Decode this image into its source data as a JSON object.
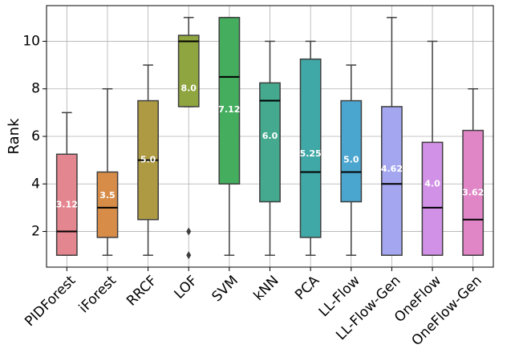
{
  "chart_data": {
    "type": "box",
    "ylabel": "Rank",
    "categories": [
      "PIDForest",
      "iForest",
      "RRCF",
      "LOF",
      "SVM",
      "kNN",
      "PCA",
      "LL-Flow",
      "LL-Flow-Gen",
      "OneFlow",
      "OneFlow-Gen"
    ],
    "colors": [
      "#e4868f",
      "#d78c48",
      "#ad9a42",
      "#8fa540",
      "#44ad5e",
      "#44a98e",
      "#40a8a6",
      "#4ba6cf",
      "#a4a7f0",
      "#d191e6",
      "#e086c6"
    ],
    "boxes": [
      {
        "min": 1,
        "q1": 1,
        "median": 2,
        "q3": 5.25,
        "max": 7,
        "outliers": []
      },
      {
        "min": 1,
        "q1": 1.75,
        "median": 3,
        "q3": 4.5,
        "max": 8,
        "outliers": []
      },
      {
        "min": 1,
        "q1": 2.5,
        "median": 5,
        "q3": 7.5,
        "max": 9,
        "outliers": []
      },
      {
        "min": 7.25,
        "q1": 7.25,
        "median": 10,
        "q3": 10.25,
        "max": 11,
        "outliers": [
          2,
          1
        ]
      },
      {
        "min": 1,
        "q1": 4,
        "median": 8.5,
        "q3": 11,
        "max": 11,
        "outliers": []
      },
      {
        "min": 1,
        "q1": 3.25,
        "median": 7.5,
        "q3": 8.25,
        "max": 10,
        "outliers": []
      },
      {
        "min": 1,
        "q1": 1.75,
        "median": 4.5,
        "q3": 9.25,
        "max": 10,
        "outliers": []
      },
      {
        "min": 1,
        "q1": 3.25,
        "median": 4.5,
        "q3": 7.5,
        "max": 9,
        "outliers": []
      },
      {
        "min": 1,
        "q1": 1,
        "median": 4,
        "q3": 7.25,
        "max": 11,
        "outliers": []
      },
      {
        "min": 1,
        "q1": 1,
        "median": 3,
        "q3": 5.75,
        "max": 10,
        "outliers": []
      },
      {
        "min": 1,
        "q1": 1,
        "median": 2.5,
        "q3": 6.25,
        "max": 8,
        "outliers": []
      }
    ],
    "means": [
      3.12,
      3.5,
      5,
      8,
      7.12,
      6,
      5.25,
      5,
      4.62,
      4,
      3.62
    ],
    "value_labels": [
      "3.12",
      "3.5",
      "5.0",
      "8.0",
      "7.12",
      "6.0",
      "5.25",
      "5.0",
      "4.62",
      "4.0",
      "3.62"
    ],
    "ylim": [
      0.5,
      11.5
    ],
    "yticks": [
      2,
      4,
      6,
      8,
      10
    ],
    "grid": true
  }
}
